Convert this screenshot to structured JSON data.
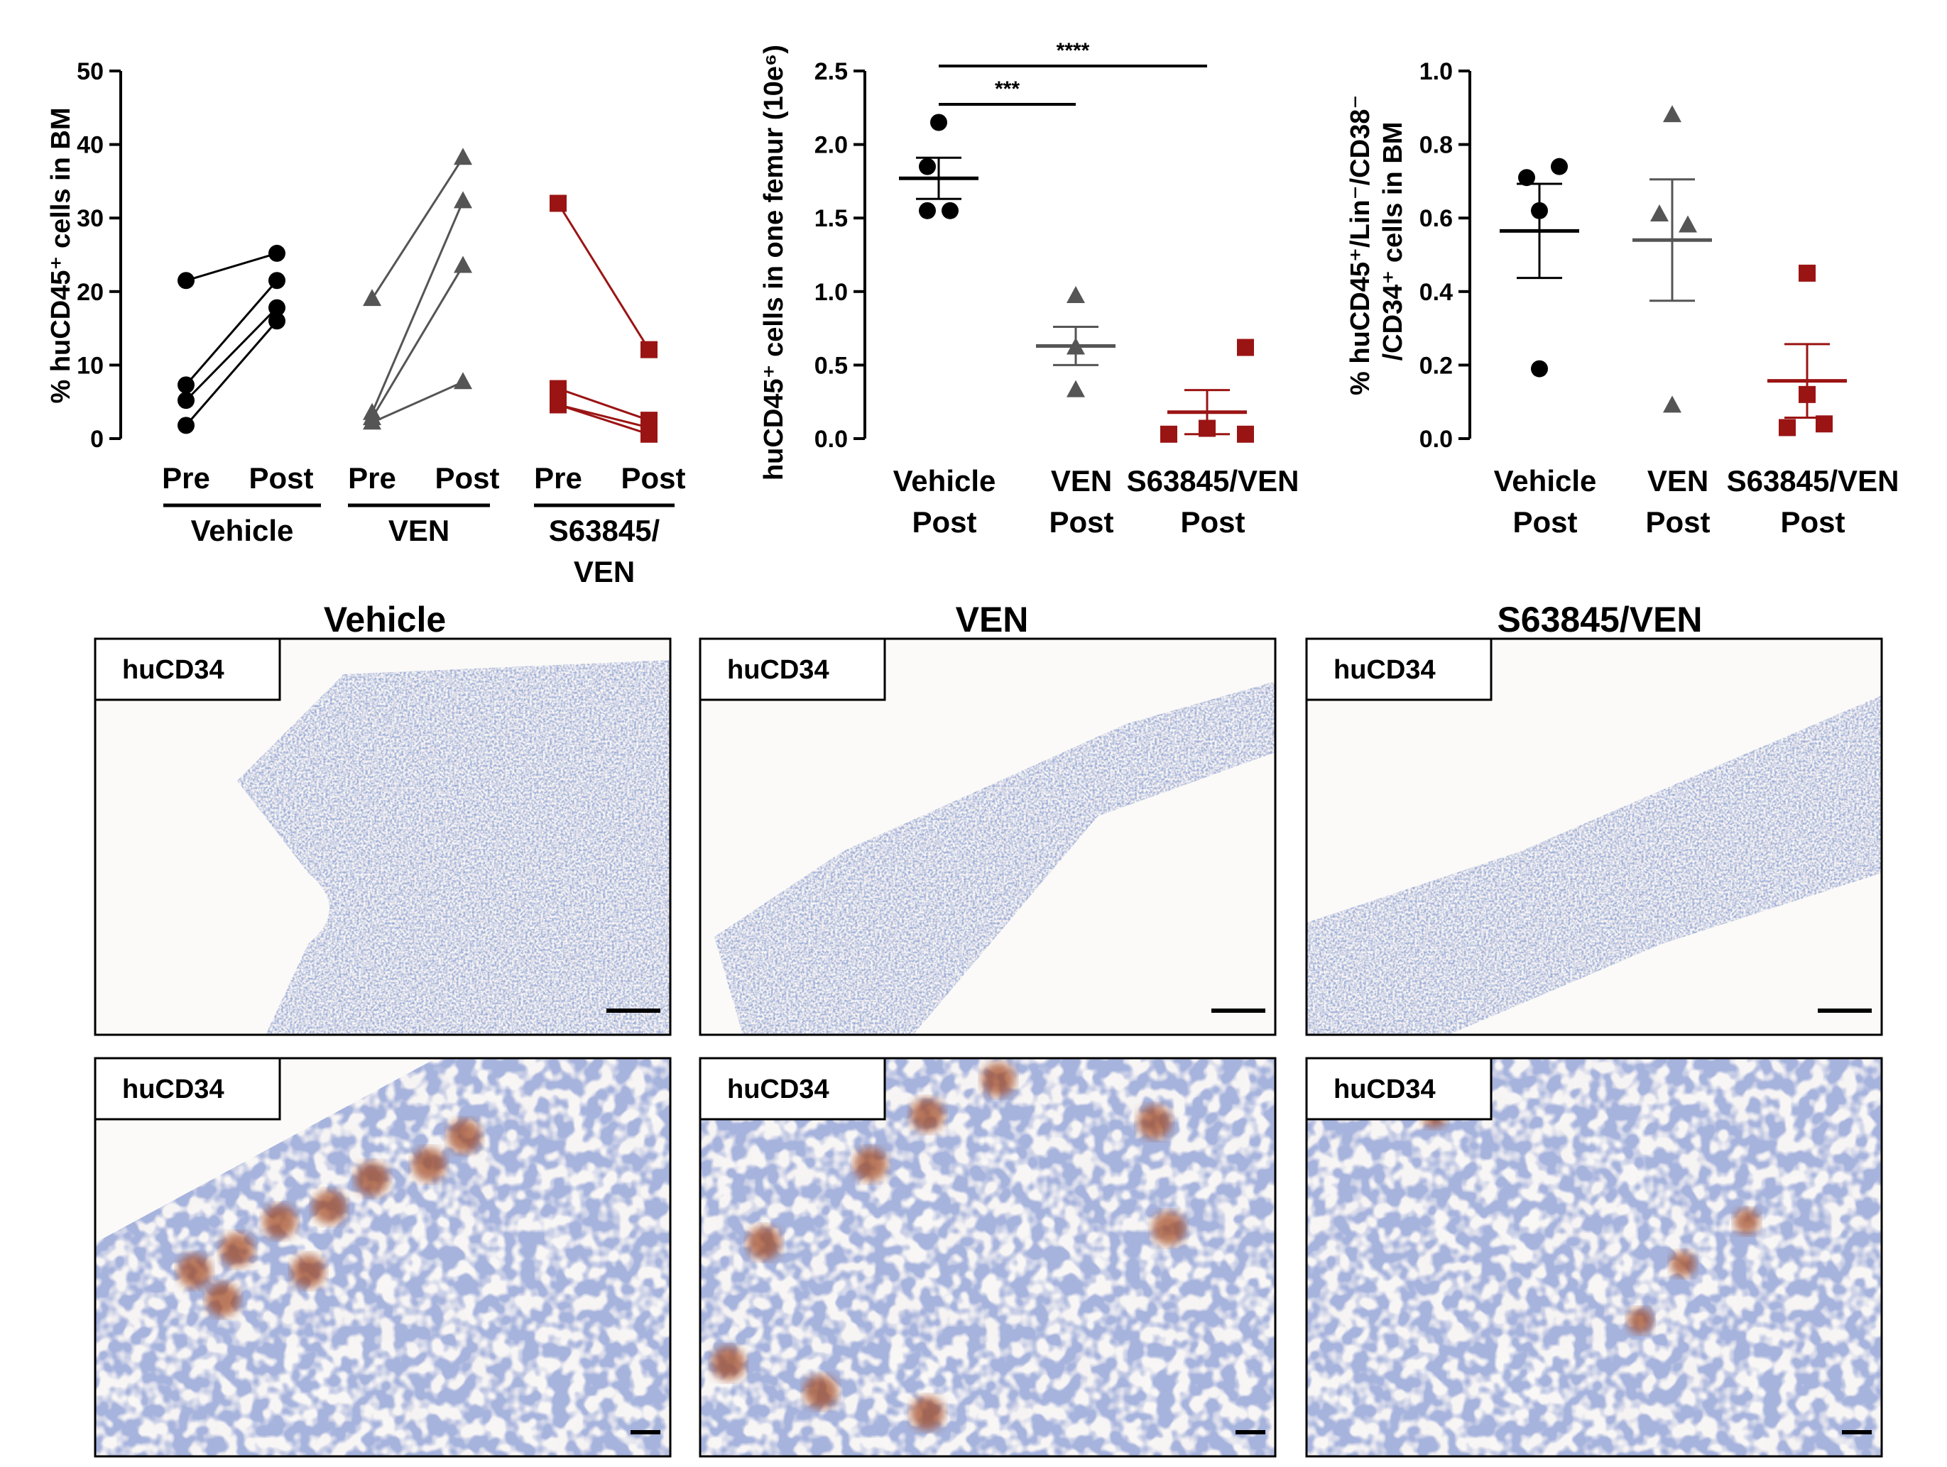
{
  "chart_data": [
    {
      "type": "scatter",
      "ylabel": "% huCD45⁺ cells in BM",
      "ylim": [
        0,
        50
      ],
      "yticks": [
        "0",
        "10",
        "20",
        "30",
        "40",
        "50"
      ],
      "x_tick_labels": [
        "Pre",
        "Post",
        "Pre",
        "Post",
        "Pre",
        "Post"
      ],
      "groups": [
        {
          "name": "Vehicle",
          "label_lines": [
            "Vehicle"
          ],
          "color": "#000000",
          "marker": "circle",
          "pairs": [
            [
              21.5,
              25.2
            ],
            [
              7.3,
              21.5
            ],
            [
              5.2,
              17.8
            ],
            [
              1.8,
              16.0
            ]
          ]
        },
        {
          "name": "VEN",
          "label_lines": [
            "VEN"
          ],
          "color": "#555555",
          "marker": "triangle",
          "pairs": [
            [
              19.0,
              38.2
            ],
            [
              3.5,
              32.3
            ],
            [
              2.8,
              23.5
            ],
            [
              2.2,
              7.7
            ]
          ]
        },
        {
          "name": "S63845/VEN",
          "label_lines": [
            "S63845/",
            "VEN"
          ],
          "color": "#9b1414",
          "marker": "square",
          "pairs": [
            [
              32.0,
              12.1
            ],
            [
              6.8,
              2.5
            ],
            [
              4.6,
              1.5
            ],
            [
              4.6,
              0.6
            ]
          ]
        }
      ]
    },
    {
      "type": "scatter",
      "ylabel": "huCD45⁺ cells in one femur (10e⁶)",
      "ylim": [
        0,
        2.5
      ],
      "yticks": [
        "0.0",
        "0.5",
        "1.0",
        "1.5",
        "2.0",
        "2.5"
      ],
      "groups": [
        {
          "label_lines": [
            "Vehicle",
            "Post"
          ],
          "color": "#000000",
          "marker": "circle",
          "points": [
            2.15,
            1.85,
            1.55,
            1.55
          ],
          "mean": 1.77,
          "sem": 0.14
        },
        {
          "label_lines": [
            "VEN",
            "Post"
          ],
          "color": "#555555",
          "marker": "triangle",
          "points": [
            0.97,
            0.62,
            0.33
          ],
          "mean": 0.63,
          "sem": 0.13
        },
        {
          "label_lines": [
            "S63845/VEN",
            "Post"
          ],
          "color": "#9b1414",
          "marker": "square",
          "points": [
            0.62,
            0.03,
            0.07,
            0.03
          ],
          "mean": 0.18,
          "sem": 0.15
        }
      ],
      "significance": [
        {
          "from": 0,
          "to": 1,
          "label": "***"
        },
        {
          "from": 0,
          "to": 2,
          "label": "****"
        }
      ]
    },
    {
      "type": "scatter",
      "ylabel_lines": [
        "% huCD45⁺/Lin⁻/CD38⁻",
        "/CD34⁺ cells in BM"
      ],
      "ylim": [
        0,
        1.0
      ],
      "yticks": [
        "0.0",
        "0.2",
        "0.4",
        "0.6",
        "0.8",
        "1.0"
      ],
      "groups": [
        {
          "label_lines": [
            "Vehicle",
            "Post"
          ],
          "color": "#000000",
          "marker": "circle",
          "points": [
            0.71,
            0.74,
            0.62,
            0.19
          ],
          "mean": 0.565,
          "sem": 0.128
        },
        {
          "label_lines": [
            "VEN",
            "Post"
          ],
          "color": "#555555",
          "marker": "triangle",
          "points": [
            0.88,
            0.61,
            0.58,
            0.09
          ],
          "mean": 0.54,
          "sem": 0.165
        },
        {
          "label_lines": [
            "S63845/VEN",
            "Post"
          ],
          "color": "#9b1414",
          "marker": "square",
          "points": [
            0.45,
            0.12,
            0.03,
            0.04
          ],
          "mean": 0.157,
          "sem": 0.1
        }
      ]
    }
  ],
  "micrographs": {
    "column_titles": [
      "Vehicle",
      "VEN",
      "S63845/VEN"
    ],
    "panel_label": "huCD34"
  }
}
